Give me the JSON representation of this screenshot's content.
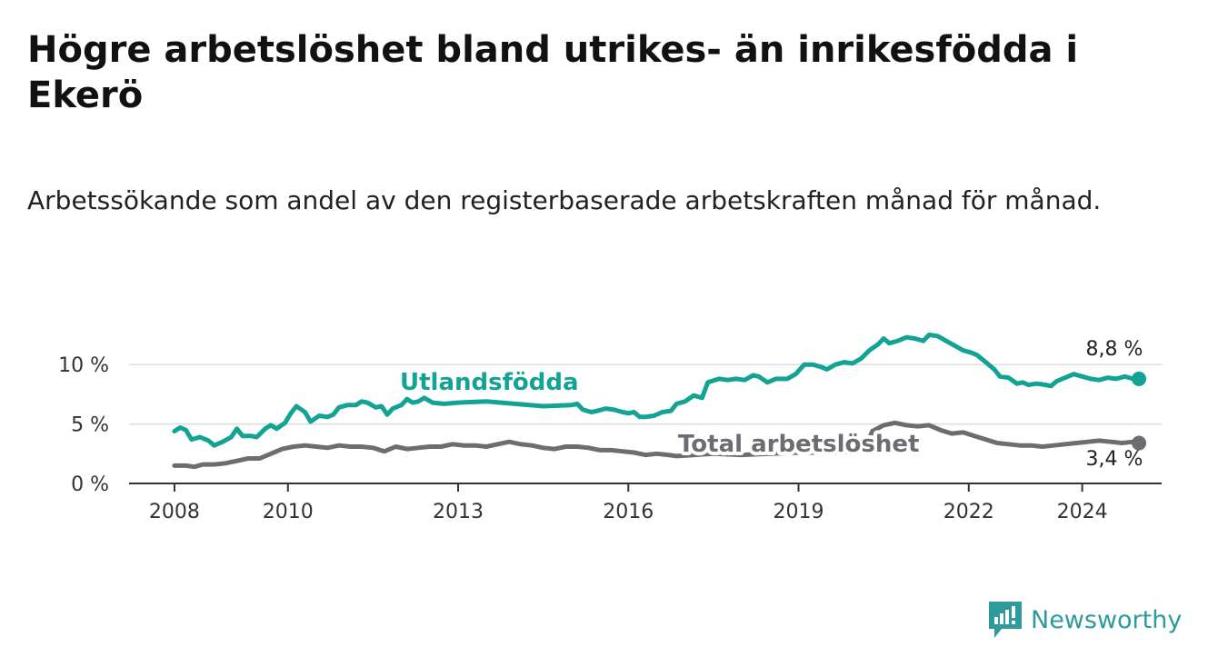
{
  "title": "Högre arbetslöshet bland utrikes- än inrikesfödda i Ekerö",
  "subtitle": "Arbetssökande som andel av den registerbaserade arbetskraften månad för månad.",
  "brand": {
    "name": "Newsworthy",
    "icon": "newsworthy-logo-icon",
    "color": "#2f9a9a"
  },
  "chart_data": {
    "type": "line",
    "x_range": [
      2007.2,
      2025.4
    ],
    "ylim": [
      0,
      13
    ],
    "y_ticks": [
      {
        "value": 0,
        "label": "0 %"
      },
      {
        "value": 5,
        "label": "5 %"
      },
      {
        "value": 10,
        "label": "10 %"
      }
    ],
    "x_ticks": [
      {
        "value": 2008,
        "label": "2008"
      },
      {
        "value": 2010,
        "label": "2010"
      },
      {
        "value": 2013,
        "label": "2013"
      },
      {
        "value": 2016,
        "label": "2016"
      },
      {
        "value": 2019,
        "label": "2019"
      },
      {
        "value": 2022,
        "label": "2022"
      },
      {
        "value": 2024,
        "label": "2024"
      }
    ],
    "grid": true,
    "series": [
      {
        "name": "Utlandsfödda",
        "color": "#13a394",
        "end_label": "8,8 %",
        "points": [
          [
            2008.0,
            4.4
          ],
          [
            2008.1,
            4.7
          ],
          [
            2008.2,
            4.5
          ],
          [
            2008.3,
            3.7
          ],
          [
            2008.45,
            3.9
          ],
          [
            2008.6,
            3.6
          ],
          [
            2008.7,
            3.2
          ],
          [
            2008.85,
            3.5
          ],
          [
            2009.0,
            3.9
          ],
          [
            2009.1,
            4.6
          ],
          [
            2009.2,
            4.0
          ],
          [
            2009.35,
            4.0
          ],
          [
            2009.45,
            3.9
          ],
          [
            2009.6,
            4.6
          ],
          [
            2009.7,
            4.9
          ],
          [
            2009.8,
            4.6
          ],
          [
            2009.95,
            5.1
          ],
          [
            2010.05,
            5.9
          ],
          [
            2010.15,
            6.5
          ],
          [
            2010.3,
            6.0
          ],
          [
            2010.4,
            5.2
          ],
          [
            2010.55,
            5.7
          ],
          [
            2010.7,
            5.6
          ],
          [
            2010.8,
            5.8
          ],
          [
            2010.9,
            6.4
          ],
          [
            2011.05,
            6.6
          ],
          [
            2011.2,
            6.6
          ],
          [
            2011.3,
            6.9
          ],
          [
            2011.4,
            6.8
          ],
          [
            2011.55,
            6.4
          ],
          [
            2011.65,
            6.5
          ],
          [
            2011.75,
            5.8
          ],
          [
            2011.85,
            6.3
          ],
          [
            2012.0,
            6.6
          ],
          [
            2012.1,
            7.1
          ],
          [
            2012.2,
            6.8
          ],
          [
            2012.3,
            6.9
          ],
          [
            2012.4,
            7.2
          ],
          [
            2012.55,
            6.8
          ],
          [
            2012.75,
            6.7
          ],
          [
            2013.0,
            6.8
          ],
          [
            2013.5,
            6.9
          ],
          [
            2014.0,
            6.7
          ],
          [
            2014.5,
            6.5
          ],
          [
            2015.0,
            6.6
          ],
          [
            2015.1,
            6.7
          ],
          [
            2015.2,
            6.2
          ],
          [
            2015.35,
            6.0
          ],
          [
            2015.45,
            6.1
          ],
          [
            2015.6,
            6.3
          ],
          [
            2015.75,
            6.2
          ],
          [
            2015.9,
            6.0
          ],
          [
            2016.0,
            5.9
          ],
          [
            2016.1,
            6.0
          ],
          [
            2016.2,
            5.6
          ],
          [
            2016.3,
            5.6
          ],
          [
            2016.45,
            5.7
          ],
          [
            2016.6,
            6.0
          ],
          [
            2016.75,
            6.1
          ],
          [
            2016.85,
            6.7
          ],
          [
            2017.0,
            6.9
          ],
          [
            2017.15,
            7.4
          ],
          [
            2017.3,
            7.2
          ],
          [
            2017.4,
            8.5
          ],
          [
            2017.6,
            8.8
          ],
          [
            2017.75,
            8.7
          ],
          [
            2017.9,
            8.8
          ],
          [
            2018.05,
            8.7
          ],
          [
            2018.2,
            9.1
          ],
          [
            2018.3,
            9.0
          ],
          [
            2018.45,
            8.5
          ],
          [
            2018.6,
            8.8
          ],
          [
            2018.8,
            8.8
          ],
          [
            2018.95,
            9.2
          ],
          [
            2019.1,
            10.0
          ],
          [
            2019.25,
            10.0
          ],
          [
            2019.4,
            9.8
          ],
          [
            2019.5,
            9.6
          ],
          [
            2019.65,
            10.0
          ],
          [
            2019.8,
            10.2
          ],
          [
            2019.95,
            10.1
          ],
          [
            2020.1,
            10.5
          ],
          [
            2020.25,
            11.2
          ],
          [
            2020.4,
            11.7
          ],
          [
            2020.5,
            12.2
          ],
          [
            2020.6,
            11.8
          ],
          [
            2020.75,
            12.0
          ],
          [
            2020.9,
            12.3
          ],
          [
            2021.05,
            12.2
          ],
          [
            2021.2,
            12.0
          ],
          [
            2021.3,
            12.5
          ],
          [
            2021.45,
            12.4
          ],
          [
            2021.6,
            12.0
          ],
          [
            2021.75,
            11.6
          ],
          [
            2021.9,
            11.2
          ],
          [
            2022.05,
            11.0
          ],
          [
            2022.15,
            10.8
          ],
          [
            2022.3,
            10.2
          ],
          [
            2022.45,
            9.6
          ],
          [
            2022.55,
            9.0
          ],
          [
            2022.7,
            8.9
          ],
          [
            2022.85,
            8.4
          ],
          [
            2022.95,
            8.5
          ],
          [
            2023.05,
            8.3
          ],
          [
            2023.2,
            8.4
          ],
          [
            2023.35,
            8.3
          ],
          [
            2023.45,
            8.2
          ],
          [
            2023.55,
            8.6
          ],
          [
            2023.7,
            8.9
          ],
          [
            2023.85,
            9.2
          ],
          [
            2024.0,
            9.0
          ],
          [
            2024.15,
            8.8
          ],
          [
            2024.3,
            8.7
          ],
          [
            2024.45,
            8.9
          ],
          [
            2024.6,
            8.8
          ],
          [
            2024.75,
            9.0
          ],
          [
            2024.9,
            8.8
          ],
          [
            2025.0,
            8.8
          ]
        ],
        "gaps": [
          [
            2012.55,
            2015.2
          ]
        ]
      },
      {
        "name": "Total arbetslöshet",
        "color": "#6e6c70",
        "end_label": "3,4 %",
        "points": [
          [
            2008.0,
            1.5
          ],
          [
            2008.2,
            1.5
          ],
          [
            2008.35,
            1.4
          ],
          [
            2008.5,
            1.6
          ],
          [
            2008.7,
            1.6
          ],
          [
            2008.9,
            1.7
          ],
          [
            2009.1,
            1.9
          ],
          [
            2009.3,
            2.1
          ],
          [
            2009.5,
            2.1
          ],
          [
            2009.7,
            2.5
          ],
          [
            2009.9,
            2.9
          ],
          [
            2010.1,
            3.1
          ],
          [
            2010.3,
            3.2
          ],
          [
            2010.5,
            3.1
          ],
          [
            2010.7,
            3.0
          ],
          [
            2010.9,
            3.2
          ],
          [
            2011.1,
            3.1
          ],
          [
            2011.3,
            3.1
          ],
          [
            2011.5,
            3.0
          ],
          [
            2011.7,
            2.7
          ],
          [
            2011.9,
            3.1
          ],
          [
            2012.1,
            2.9
          ],
          [
            2012.3,
            3.0
          ],
          [
            2012.5,
            3.1
          ],
          [
            2012.7,
            3.1
          ],
          [
            2012.9,
            3.3
          ],
          [
            2013.1,
            3.2
          ],
          [
            2013.3,
            3.2
          ],
          [
            2013.5,
            3.1
          ],
          [
            2013.7,
            3.3
          ],
          [
            2013.9,
            3.5
          ],
          [
            2014.1,
            3.3
          ],
          [
            2014.3,
            3.2
          ],
          [
            2014.5,
            3.0
          ],
          [
            2014.7,
            2.9
          ],
          [
            2014.9,
            3.1
          ],
          [
            2015.1,
            3.1
          ],
          [
            2015.3,
            3.0
          ],
          [
            2015.5,
            2.8
          ],
          [
            2015.7,
            2.8
          ],
          [
            2015.9,
            2.7
          ],
          [
            2016.1,
            2.6
          ],
          [
            2016.3,
            2.4
          ],
          [
            2016.5,
            2.5
          ],
          [
            2016.7,
            2.4
          ],
          [
            2016.85,
            2.3
          ],
          [
            2017.5,
            2.5
          ],
          [
            2018.0,
            2.4
          ],
          [
            2018.5,
            2.5
          ],
          [
            2019.0,
            2.6
          ],
          [
            2019.5,
            2.6
          ],
          [
            2020.0,
            2.7
          ],
          [
            2020.2,
            3.3
          ],
          [
            2020.3,
            4.4
          ],
          [
            2020.5,
            4.9
          ],
          [
            2020.7,
            5.1
          ],
          [
            2020.9,
            4.9
          ],
          [
            2021.1,
            4.8
          ],
          [
            2021.3,
            4.9
          ],
          [
            2021.5,
            4.5
          ],
          [
            2021.7,
            4.2
          ],
          [
            2021.9,
            4.3
          ],
          [
            2022.1,
            4.0
          ],
          [
            2022.3,
            3.7
          ],
          [
            2022.5,
            3.4
          ],
          [
            2022.7,
            3.3
          ],
          [
            2022.9,
            3.2
          ],
          [
            2023.1,
            3.2
          ],
          [
            2023.3,
            3.1
          ],
          [
            2023.5,
            3.2
          ],
          [
            2023.7,
            3.3
          ],
          [
            2023.9,
            3.4
          ],
          [
            2024.1,
            3.5
          ],
          [
            2024.3,
            3.6
          ],
          [
            2024.5,
            3.5
          ],
          [
            2024.7,
            3.4
          ],
          [
            2024.9,
            3.5
          ],
          [
            2025.0,
            3.4
          ]
        ],
        "gaps": [
          [
            2016.85,
            2020.2
          ]
        ]
      }
    ]
  }
}
